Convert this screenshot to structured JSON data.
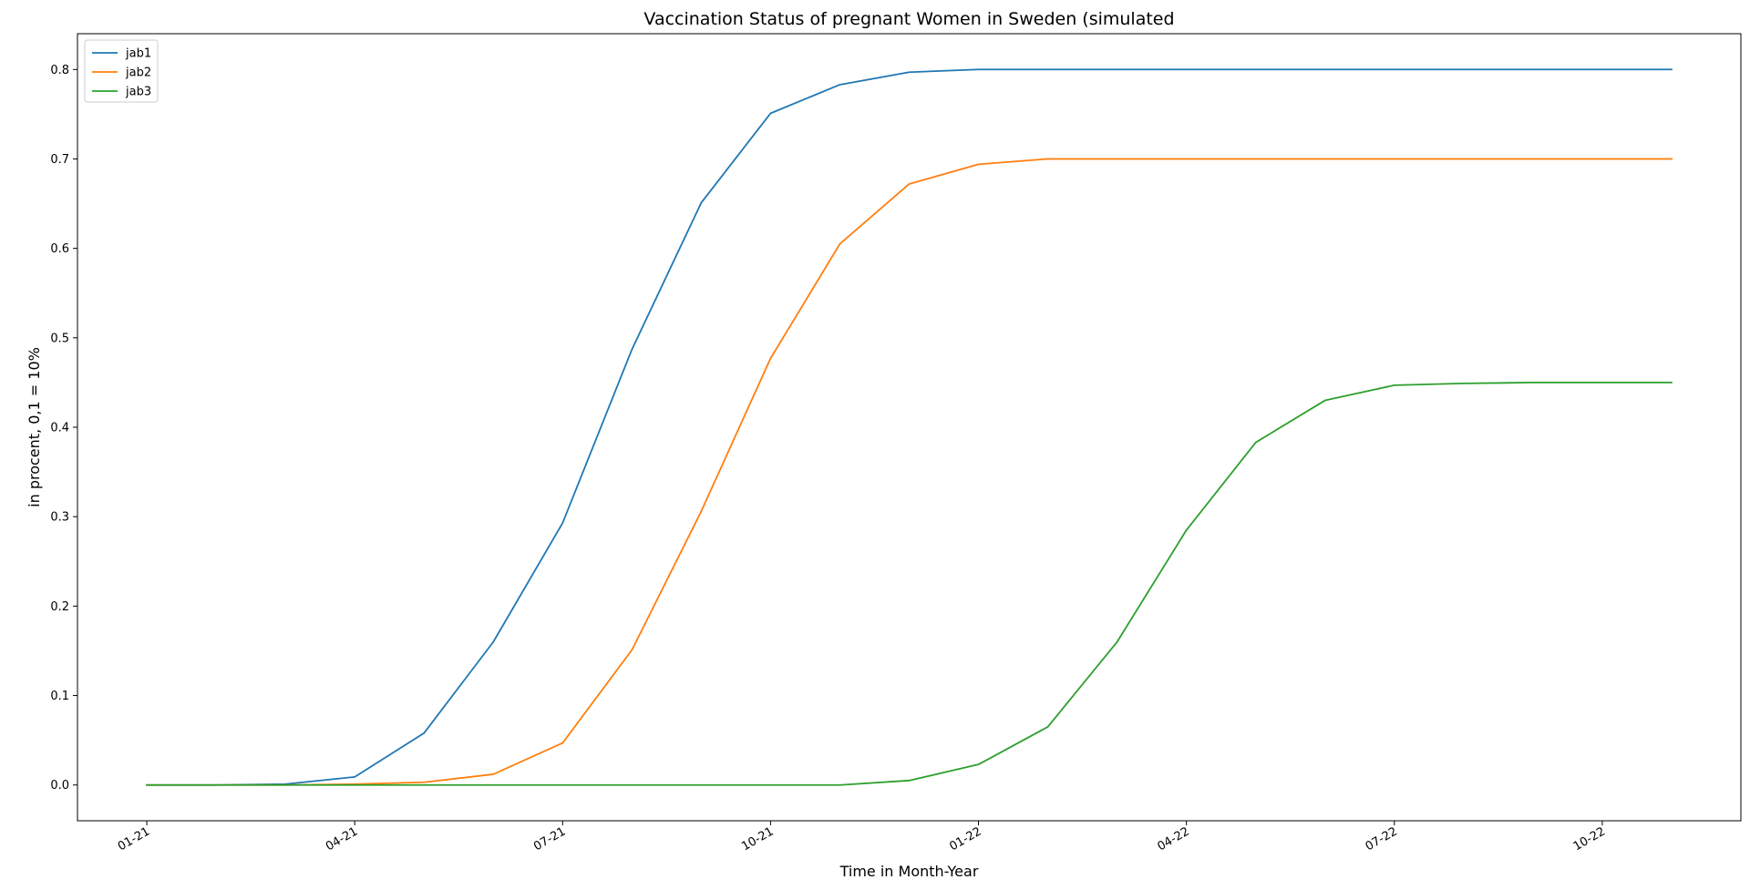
{
  "chart_data": {
    "type": "line",
    "title": "Vaccination Status of pregnant Women in Sweden (simulated",
    "xlabel": "Time in Month-Year",
    "ylabel": "in procent, 0,1 = 10%",
    "x": [
      "2021-01",
      "2021-02",
      "2021-03",
      "2021-04",
      "2021-05",
      "2021-06",
      "2021-07",
      "2021-08",
      "2021-09",
      "2021-10",
      "2021-11",
      "2021-12",
      "2022-01",
      "2022-02",
      "2022-03",
      "2022-04",
      "2022-05",
      "2022-06",
      "2022-07",
      "2022-08",
      "2022-09",
      "2022-10",
      "2022-11"
    ],
    "xticks": [
      {
        "x": "2021-01",
        "label": "01-21"
      },
      {
        "x": "2021-04",
        "label": "04-21"
      },
      {
        "x": "2021-07",
        "label": "07-21"
      },
      {
        "x": "2021-10",
        "label": "10-21"
      },
      {
        "x": "2022-01",
        "label": "01-22"
      },
      {
        "x": "2022-04",
        "label": "04-22"
      },
      {
        "x": "2022-07",
        "label": "07-22"
      },
      {
        "x": "2022-10",
        "label": "10-22"
      }
    ],
    "yticks": [
      "0.0",
      "0.1",
      "0.2",
      "0.3",
      "0.4",
      "0.5",
      "0.6",
      "0.7",
      "0.8"
    ],
    "ylim": [
      -0.04,
      0.84
    ],
    "xlim": [
      "2020-12",
      "2022-12"
    ],
    "grid": false,
    "legend_position": "upper-left",
    "series": [
      {
        "name": "jab1",
        "color": "#1f77b4",
        "values": [
          0.0,
          0.0,
          0.001,
          0.009,
          0.058,
          0.16,
          0.293,
          0.487,
          0.651,
          0.751,
          0.783,
          0.797,
          0.8,
          0.8,
          0.8,
          0.8,
          0.8,
          0.8,
          0.8,
          0.8,
          0.8,
          0.8,
          0.8
        ]
      },
      {
        "name": "jab2",
        "color": "#ff7f0e",
        "values": [
          0.0,
          0.0,
          0.0,
          0.001,
          0.003,
          0.012,
          0.047,
          0.151,
          0.306,
          0.477,
          0.605,
          0.672,
          0.694,
          0.7,
          0.7,
          0.7,
          0.7,
          0.7,
          0.7,
          0.7,
          0.7,
          0.7,
          0.7
        ]
      },
      {
        "name": "jab3",
        "color": "#2ca02c",
        "values": [
          0.0,
          0.0,
          0.0,
          0.0,
          0.0,
          0.0,
          0.0,
          0.0,
          0.0,
          0.0,
          0.0,
          0.005,
          0.023,
          0.065,
          0.16,
          0.285,
          0.383,
          0.43,
          0.447,
          0.449,
          0.45,
          0.45,
          0.45
        ]
      }
    ]
  }
}
